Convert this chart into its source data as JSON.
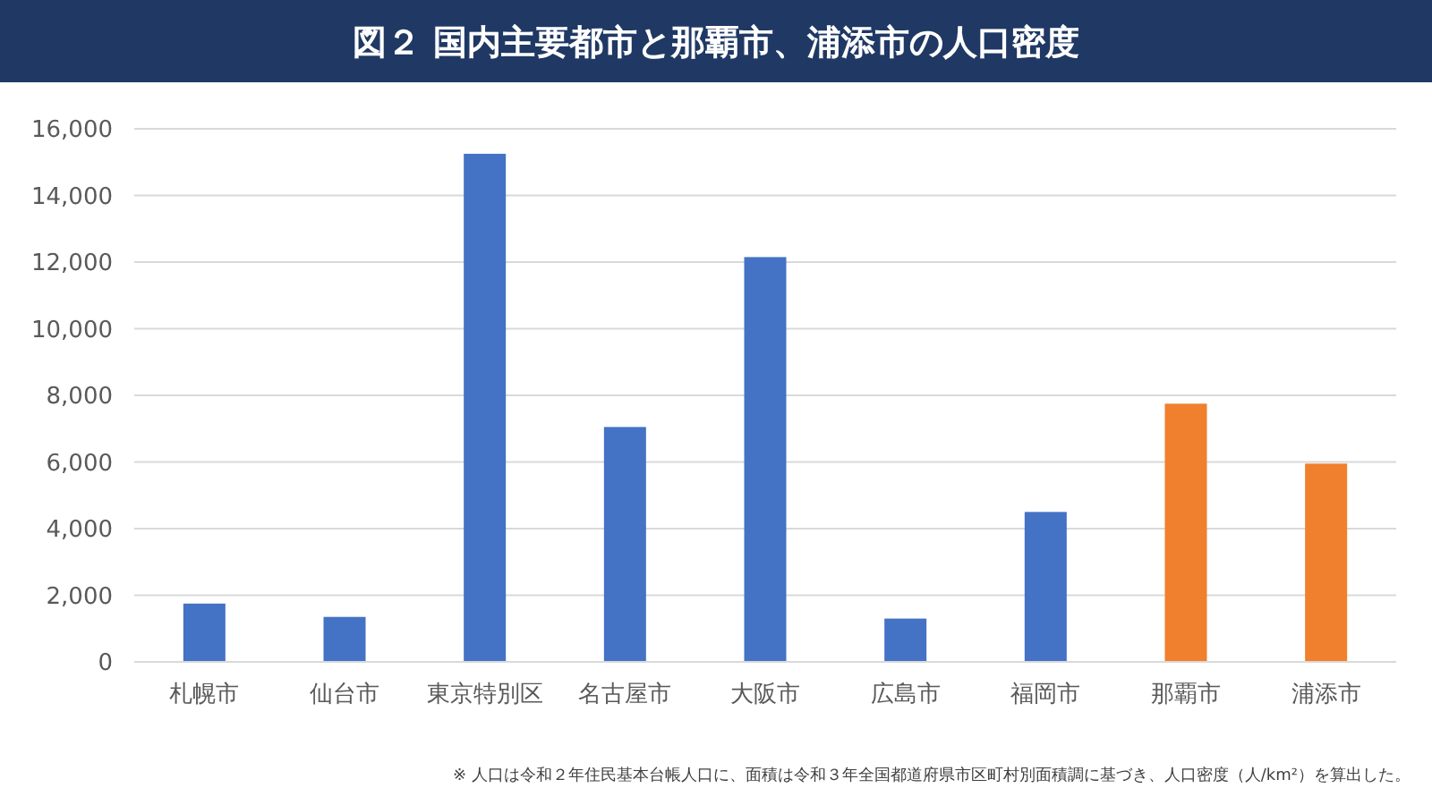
{
  "chart_data": {
    "type": "bar",
    "title": "図２ 国内主要都市と那覇市、浦添市の人口密度",
    "categories": [
      "札幌市",
      "仙台市",
      "東京特別区",
      "名古屋市",
      "大阪市",
      "広島市",
      "福岡市",
      "那覇市",
      "浦添市"
    ],
    "values": [
      1750,
      1350,
      15250,
      7050,
      12150,
      1300,
      4500,
      7750,
      5950
    ],
    "colors": [
      "#4472c4",
      "#4472c4",
      "#4472c4",
      "#4472c4",
      "#4472c4",
      "#4472c4",
      "#4472c4",
      "#f07f2e",
      "#f07f2e"
    ],
    "ylim": [
      0,
      16000
    ],
    "yticks": [
      {
        "value": 0,
        "label": "0"
      },
      {
        "value": 2000,
        "label": "2,000"
      },
      {
        "value": 4000,
        "label": "4,000"
      },
      {
        "value": 6000,
        "label": "6,000"
      },
      {
        "value": 8000,
        "label": "8,000"
      },
      {
        "value": 10000,
        "label": "10,000"
      },
      {
        "value": 12000,
        "label": "12,000"
      },
      {
        "value": 14000,
        "label": "14,000"
      },
      {
        "value": 16000,
        "label": "16,000"
      }
    ],
    "grid": "y",
    "annotations": [
      "※ 人口は令和２年住民基本台帳人口に、面積は令和３年全国都道府県市区町村別面積調に基づき、人口密度（人/km²）を算出した。"
    ]
  }
}
